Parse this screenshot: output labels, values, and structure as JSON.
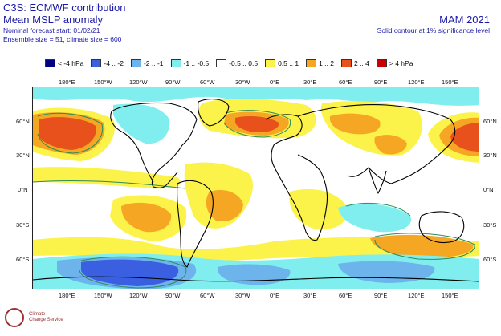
{
  "header": {
    "title_line1": "C3S: ECMWF contribution",
    "title_line2": "Mean MSLP anomaly",
    "nominal_start": "Nominal forecast start: 01/02/21",
    "ensemble": "Ensemble size = 51, climate size = 600",
    "season": "MAM 2021",
    "significance_note": "Solid contour at 1% significance level"
  },
  "legend": [
    {
      "label": "< -4 hPa",
      "color": "#000080"
    },
    {
      "label": "-4 .. -2",
      "color": "#3a5fe0"
    },
    {
      "label": "-2 .. -1",
      "color": "#6db4ec"
    },
    {
      "label": "-1 .. -0.5",
      "color": "#80eeee"
    },
    {
      "label": "-0.5 .. 0.5",
      "color": "#ffffff"
    },
    {
      "label": "0.5 .. 1",
      "color": "#fbf24a"
    },
    {
      "label": "1 .. 2",
      "color": "#f5a623"
    },
    {
      "label": "2 .. 4",
      "color": "#e8501c"
    },
    {
      "label": "> 4 hPa",
      "color": "#c80000"
    }
  ],
  "axes": {
    "lon_labels": [
      "180°E",
      "150°W",
      "120°W",
      "90°W",
      "60°W",
      "30°W",
      "0°E",
      "30°E",
      "60°E",
      "90°E",
      "120°E",
      "150°E"
    ],
    "lat_labels": [
      "60°N",
      "30°N",
      "0°N",
      "30°S",
      "60°S"
    ]
  },
  "logo": {
    "text_line1": "Climate",
    "text_line2": "Change Service"
  },
  "colors": {
    "positive_strong": "#e8501c",
    "positive_mid": "#f5a623",
    "positive_weak": "#fbf24a",
    "negative_weak": "#80eeee",
    "negative_mid": "#6db4ec",
    "negative_strong": "#3a5fe0",
    "coastline": "#000000",
    "contour": "#2e8b57"
  }
}
